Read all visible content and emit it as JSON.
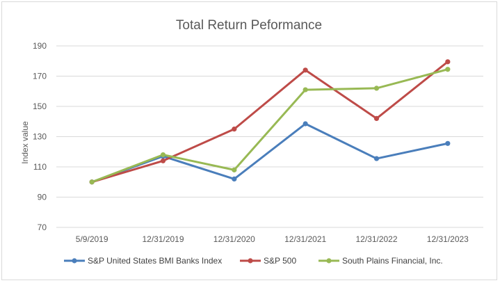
{
  "chart_data": {
    "type": "line",
    "title": "Total Return Peformance",
    "ylabel": "Index value",
    "xlabel": "",
    "categories": [
      "5/9/2019",
      "12/31/2019",
      "12/31/2020",
      "12/31/2021",
      "12/31/2022",
      "12/31/2023"
    ],
    "ylim": [
      70,
      190
    ],
    "yticks": [
      70,
      90,
      110,
      130,
      150,
      170,
      190
    ],
    "grid": true,
    "legend_position": "bottom",
    "series": [
      {
        "name": "S&P United States BMI Banks Index",
        "color": "#4a7ebb",
        "values": [
          100,
          117,
          102,
          138.5,
          115.5,
          125.5
        ]
      },
      {
        "name": "S&P 500",
        "color": "#be4b48",
        "values": [
          100,
          114,
          135,
          174,
          142,
          179.5
        ]
      },
      {
        "name": "South Plains Financial, Inc.",
        "color": "#98b954",
        "values": [
          100,
          118,
          108,
          161,
          162,
          174.5
        ]
      }
    ]
  }
}
